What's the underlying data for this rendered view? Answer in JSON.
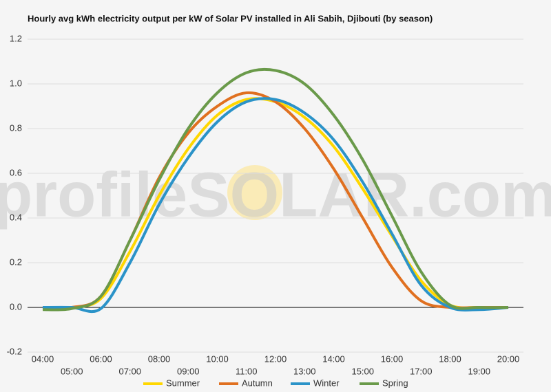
{
  "chart_data": {
    "type": "line",
    "title": "Hourly avg kWh electricity output per kW of Solar PV installed in Ali Sabih, Djibouti (by season)",
    "watermark": "profileSOLAR.com",
    "categories": [
      "04:00",
      "05:00",
      "06:00",
      "07:00",
      "08:00",
      "09:00",
      "10:00",
      "11:00",
      "12:00",
      "13:00",
      "14:00",
      "15:00",
      "16:00",
      "17:00",
      "18:00",
      "19:00",
      "20:00"
    ],
    "series": [
      {
        "name": "Summer",
        "color": "#ffd700",
        "values": [
          0,
          0,
          0.04,
          0.25,
          0.5,
          0.71,
          0.86,
          0.93,
          0.92,
          0.85,
          0.72,
          0.53,
          0.32,
          0.12,
          0.01,
          0,
          0
        ]
      },
      {
        "name": "Autumn",
        "color": "#e07020",
        "values": [
          0,
          0,
          0.05,
          0.3,
          0.58,
          0.78,
          0.9,
          0.96,
          0.92,
          0.8,
          0.62,
          0.4,
          0.18,
          0.03,
          0,
          0,
          0
        ]
      },
      {
        "name": "Winter",
        "color": "#2b93c8",
        "values": [
          0,
          0,
          -0.005,
          0.2,
          0.46,
          0.67,
          0.83,
          0.92,
          0.93,
          0.87,
          0.75,
          0.56,
          0.33,
          0.1,
          0,
          -0.01,
          0
        ]
      },
      {
        "name": "Spring",
        "color": "#6a9a4a",
        "values": [
          -0.01,
          -0.005,
          0.05,
          0.3,
          0.57,
          0.8,
          0.96,
          1.05,
          1.06,
          1.0,
          0.86,
          0.66,
          0.41,
          0.16,
          0.01,
          0,
          0
        ]
      }
    ],
    "ylim": [
      -0.2,
      1.2
    ],
    "yticks": [
      -0.2,
      {
        "value": 0,
        "label": "0.0"
      },
      0.2,
      0.4,
      0.6,
      0.8,
      {
        "value": 1,
        "label": "1.0"
      },
      1.2
    ],
    "grid": true,
    "legend": "bottom"
  }
}
